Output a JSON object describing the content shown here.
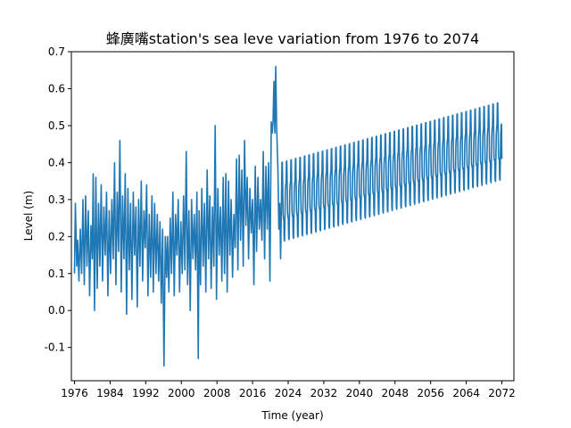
{
  "chart_data": {
    "type": "line",
    "title": "蜂廣嘴station's sea leve variation from 1976 to 2074",
    "xlabel": "Time (year)",
    "ylabel": "Level (m)",
    "xlim": [
      1975.3,
      2074.7
    ],
    "ylim": [
      -0.19,
      0.7
    ],
    "xticks": [
      1976,
      1984,
      1992,
      2000,
      2008,
      2016,
      2024,
      2032,
      2040,
      2048,
      2056,
      2064,
      2072
    ],
    "yticks": [
      -0.1,
      0.0,
      0.1,
      0.2,
      0.3,
      0.4,
      0.5,
      0.6,
      0.7
    ],
    "ytick_labels": [
      "-0.1",
      "0.0",
      "0.1",
      "0.2",
      "0.3",
      "0.4",
      "0.5",
      "0.6",
      "0.7"
    ],
    "line_color": "#1f77b4",
    "grid": false,
    "legend": "none",
    "series": [
      {
        "observed_points": [
          [
            1976.0,
            0.1
          ],
          [
            1976.2,
            0.29
          ],
          [
            1976.5,
            0.12
          ],
          [
            1976.7,
            0.19
          ],
          [
            1977.0,
            0.08
          ],
          [
            1977.3,
            0.22
          ],
          [
            1977.6,
            0.1
          ],
          [
            1977.9,
            0.3
          ],
          [
            1978.2,
            0.07
          ],
          [
            1978.5,
            0.31
          ],
          [
            1978.8,
            0.12
          ],
          [
            1979.1,
            0.27
          ],
          [
            1979.4,
            0.04
          ],
          [
            1979.7,
            0.23
          ],
          [
            1980.0,
            0.14
          ],
          [
            1980.2,
            0.37
          ],
          [
            1980.5,
            0.0
          ],
          [
            1980.8,
            0.36
          ],
          [
            1981.1,
            0.06
          ],
          [
            1981.4,
            0.29
          ],
          [
            1981.7,
            0.12
          ],
          [
            1982.0,
            0.34
          ],
          [
            1982.3,
            0.08
          ],
          [
            1982.6,
            0.28
          ],
          [
            1982.9,
            0.15
          ],
          [
            1983.2,
            0.32
          ],
          [
            1983.5,
            0.04
          ],
          [
            1983.8,
            0.27
          ],
          [
            1984.1,
            0.1
          ],
          [
            1984.4,
            0.3
          ],
          [
            1984.7,
            0.14
          ],
          [
            1985.0,
            0.4
          ],
          [
            1985.3,
            0.07
          ],
          [
            1985.6,
            0.32
          ],
          [
            1985.9,
            0.16
          ],
          [
            1986.2,
            0.46
          ],
          [
            1986.5,
            0.05
          ],
          [
            1986.8,
            0.31
          ],
          [
            1987.1,
            0.14
          ],
          [
            1987.4,
            0.37
          ],
          [
            1987.7,
            -0.01
          ],
          [
            1988.0,
            0.33
          ],
          [
            1988.3,
            0.11
          ],
          [
            1988.6,
            0.29
          ],
          [
            1988.9,
            0.03
          ],
          [
            1989.2,
            0.32
          ],
          [
            1989.5,
            0.15
          ],
          [
            1989.8,
            0.28
          ],
          [
            1990.1,
            0.01
          ],
          [
            1990.4,
            0.3
          ],
          [
            1990.7,
            0.12
          ],
          [
            1991.0,
            0.35
          ],
          [
            1991.3,
            0.08
          ],
          [
            1991.6,
            0.27
          ],
          [
            1991.9,
            0.17
          ],
          [
            1992.2,
            0.34
          ],
          [
            1992.5,
            0.04
          ],
          [
            1992.8,
            0.26
          ],
          [
            1993.1,
            0.09
          ],
          [
            1993.4,
            0.31
          ],
          [
            1993.7,
            0.05
          ],
          [
            1994.0,
            0.29
          ],
          [
            1994.3,
            0.1
          ],
          [
            1994.6,
            0.26
          ],
          [
            1994.9,
            0.08
          ],
          [
            1995.2,
            0.24
          ],
          [
            1995.5,
            0.02
          ],
          [
            1995.8,
            0.22
          ],
          [
            1996.1,
            -0.15
          ],
          [
            1996.4,
            0.2
          ],
          [
            1996.7,
            0.09
          ],
          [
            1996.9,
            0.2
          ],
          [
            1997.2,
            0.05
          ],
          [
            1997.5,
            0.25
          ],
          [
            1997.8,
            0.1
          ],
          [
            1998.1,
            0.32
          ],
          [
            1998.4,
            0.04
          ],
          [
            1998.7,
            0.26
          ],
          [
            1999.0,
            0.15
          ],
          [
            1999.3,
            0.3
          ],
          [
            1999.6,
            0.05
          ],
          [
            1999.9,
            0.24
          ],
          [
            2000.2,
            0.1
          ],
          [
            2000.5,
            0.31
          ],
          [
            2000.8,
            0.11
          ],
          [
            2001.1,
            0.43
          ],
          [
            2001.4,
            0.07
          ],
          [
            2001.7,
            0.27
          ],
          [
            2002.0,
            0.0
          ],
          [
            2002.3,
            0.3
          ],
          [
            2002.6,
            0.14
          ],
          [
            2002.9,
            0.26
          ],
          [
            2003.2,
            0.11
          ],
          [
            2003.5,
            0.32
          ],
          [
            2003.8,
            -0.13
          ],
          [
            2004.0,
            0.27
          ],
          [
            2004.3,
            0.07
          ],
          [
            2004.6,
            0.33
          ],
          [
            2004.9,
            0.12
          ],
          [
            2005.2,
            0.29
          ],
          [
            2005.5,
            0.05
          ],
          [
            2005.8,
            0.38
          ],
          [
            2006.1,
            0.14
          ],
          [
            2006.4,
            0.31
          ],
          [
            2006.7,
            0.06
          ],
          [
            2007.0,
            0.28
          ],
          [
            2007.3,
            0.12
          ],
          [
            2007.6,
            0.5
          ],
          [
            2007.9,
            0.03
          ],
          [
            2008.2,
            0.33
          ],
          [
            2008.5,
            0.15
          ],
          [
            2008.8,
            0.28
          ],
          [
            2009.1,
            0.08
          ],
          [
            2009.4,
            0.36
          ],
          [
            2009.7,
            0.1
          ],
          [
            2010.0,
            0.37
          ],
          [
            2010.3,
            0.05
          ],
          [
            2010.6,
            0.35
          ],
          [
            2010.9,
            0.15
          ],
          [
            2011.2,
            0.3
          ],
          [
            2011.5,
            0.09
          ],
          [
            2011.8,
            0.26
          ],
          [
            2012.1,
            0.17
          ],
          [
            2012.4,
            0.41
          ],
          [
            2012.7,
            0.11
          ],
          [
            2013.0,
            0.42
          ],
          [
            2013.3,
            0.19
          ],
          [
            2013.6,
            0.38
          ],
          [
            2013.9,
            0.12
          ],
          [
            2014.2,
            0.46
          ],
          [
            2014.5,
            0.23
          ],
          [
            2014.8,
            0.36
          ],
          [
            2015.1,
            0.14
          ],
          [
            2015.4,
            0.33
          ],
          [
            2015.7,
            0.21
          ],
          [
            2016.0,
            0.3
          ],
          [
            2016.3,
            0.07
          ],
          [
            2016.6,
            0.39
          ],
          [
            2016.9,
            0.16
          ],
          [
            2017.2,
            0.36
          ],
          [
            2017.5,
            0.22
          ],
          [
            2017.8,
            0.3
          ],
          [
            2018.1,
            0.19
          ],
          [
            2018.4,
            0.43
          ],
          [
            2018.7,
            0.14
          ],
          [
            2019.0,
            0.39
          ],
          [
            2019.3,
            0.22
          ],
          [
            2019.6,
            0.4
          ],
          [
            2019.9,
            0.08
          ],
          [
            2020.2,
            0.51
          ],
          [
            2020.4,
            0.48
          ],
          [
            2020.6,
            0.51
          ],
          [
            2020.8,
            0.62
          ],
          [
            2021.0,
            0.48
          ],
          [
            2021.2,
            0.66
          ],
          [
            2021.4,
            0.5
          ],
          [
            2021.7,
            0.38
          ],
          [
            2021.9,
            0.22
          ],
          [
            2022.1,
            0.29
          ],
          [
            2022.3,
            0.14
          ],
          [
            2022.5,
            0.31
          ]
        ],
        "projection": {
          "x_start": 2022.6,
          "x_end": 2072.0,
          "cycle_years": 1.0,
          "start_min": 0.19,
          "start_max": 0.4,
          "end_min": 0.36,
          "end_max": 0.565,
          "start_mean": 0.29,
          "end_mean": 0.45
        }
      }
    ]
  }
}
